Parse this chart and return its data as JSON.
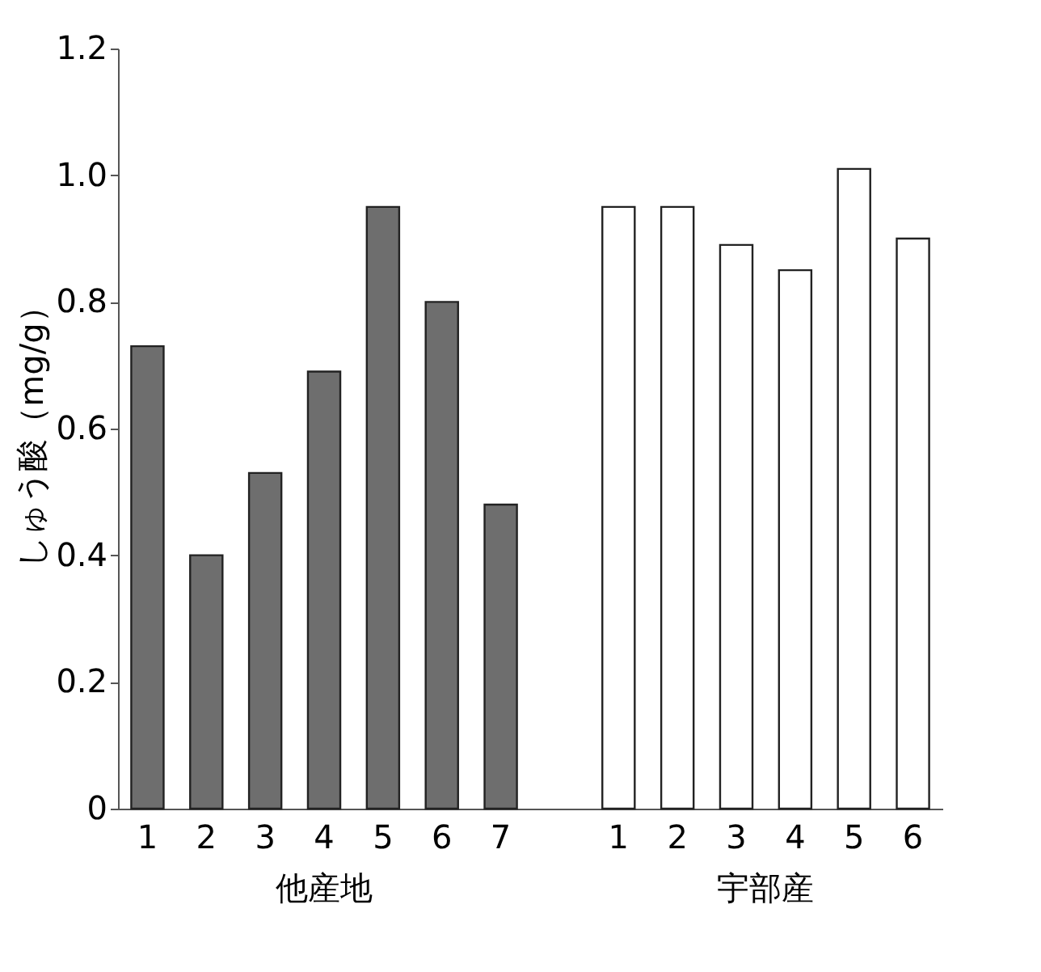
{
  "chart_data": {
    "type": "bar",
    "ylabel": "しゅう酸（mg/g）",
    "categories": [
      "1",
      "2",
      "3",
      "4",
      "5",
      "6",
      "7",
      null,
      "1",
      "2",
      "3",
      "4",
      "5",
      "6"
    ],
    "series": [
      {
        "name": "他産地",
        "color": "#6e6e6e",
        "values": [
          0.73,
          0.4,
          0.53,
          0.69,
          0.95,
          0.8,
          0.48,
          null,
          null,
          null,
          null,
          null,
          null,
          null
        ]
      },
      {
        "name": "宇部産",
        "color": "#ffffff",
        "values": [
          null,
          null,
          null,
          null,
          null,
          null,
          null,
          null,
          0.95,
          0.95,
          0.89,
          0.85,
          1.01,
          0.9
        ]
      }
    ],
    "ylim": [
      0,
      1.2
    ],
    "yticks": [
      0,
      0.2,
      0.4,
      0.6,
      0.8,
      {
        "value": 1.0,
        "label": "1.0"
      },
      1.2
    ]
  }
}
